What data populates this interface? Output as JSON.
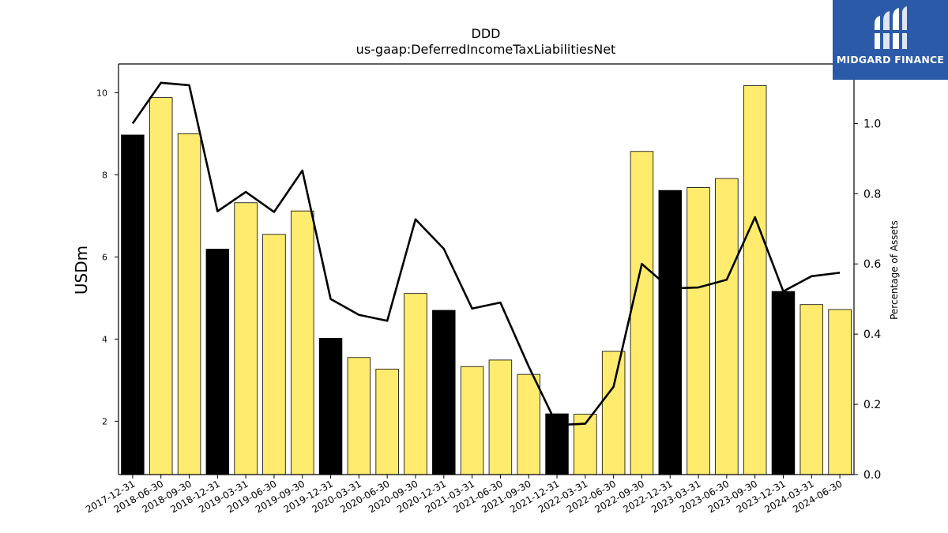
{
  "brand": {
    "name": "MIDGARD FINANCE",
    "accent": "#2b5aa8"
  },
  "chart_data": {
    "type": "bar",
    "title": "DDD",
    "subtitle": "us-gaap:DeferredIncomeTaxLiabilitiesNet",
    "ylabel": "USDm",
    "ylabel_right": "Percentage of Assets",
    "ylim": [
      0.7,
      10.7
    ],
    "ylim_right": [
      0.0,
      1.1696
    ],
    "yticks": [
      2,
      4,
      6,
      8,
      10
    ],
    "yticks_right": [
      0.0,
      0.2,
      0.4,
      0.6,
      0.8,
      1.0
    ],
    "categories": [
      "2017-12-31",
      "2018-06-30",
      "2018-09-30",
      "2018-12-31",
      "2019-03-31",
      "2019-06-30",
      "2019-09-30",
      "2019-12-31",
      "2020-03-31",
      "2020-06-30",
      "2020-09-30",
      "2020-12-31",
      "2021-03-31",
      "2021-06-30",
      "2021-09-30",
      "2021-12-31",
      "2022-03-31",
      "2022-06-30",
      "2022-09-30",
      "2022-12-31",
      "2023-03-31",
      "2023-06-30",
      "2023-09-30",
      "2023-12-31",
      "2024-03-31",
      "2024-06-30"
    ],
    "series": [
      {
        "type": "bar",
        "values": [
          8.97,
          9.88,
          9.0,
          6.19,
          7.32,
          6.55,
          7.12,
          4.02,
          3.55,
          3.27,
          5.11,
          4.7,
          3.33,
          3.49,
          3.14,
          2.18,
          2.17,
          3.7,
          8.57,
          7.62,
          7.69,
          7.91,
          10.17,
          5.16,
          4.84,
          4.72
        ],
        "colors": [
          "#000000",
          "#ffec6e",
          "#ffec6e",
          "#000000",
          "#ffec6e",
          "#ffec6e",
          "#ffec6e",
          "#000000",
          "#ffec6e",
          "#ffec6e",
          "#ffec6e",
          "#000000",
          "#ffec6e",
          "#ffec6e",
          "#ffec6e",
          "#000000",
          "#ffec6e",
          "#ffec6e",
          "#ffec6e",
          "#000000",
          "#ffec6e",
          "#ffec6e",
          "#ffec6e",
          "#000000",
          "#ffec6e",
          "#ffec6e"
        ]
      },
      {
        "type": "line",
        "axis": "right",
        "color": "#000000",
        "values": [
          1.0,
          1.116,
          1.109,
          0.75,
          0.805,
          0.748,
          0.866,
          0.5,
          0.455,
          0.438,
          0.727,
          0.643,
          0.473,
          0.49,
          0.308,
          0.141,
          0.145,
          0.25,
          0.6,
          0.53,
          0.533,
          0.555,
          0.733,
          0.522,
          0.565,
          0.575
        ]
      }
    ],
    "grid": false,
    "legend": "none"
  }
}
